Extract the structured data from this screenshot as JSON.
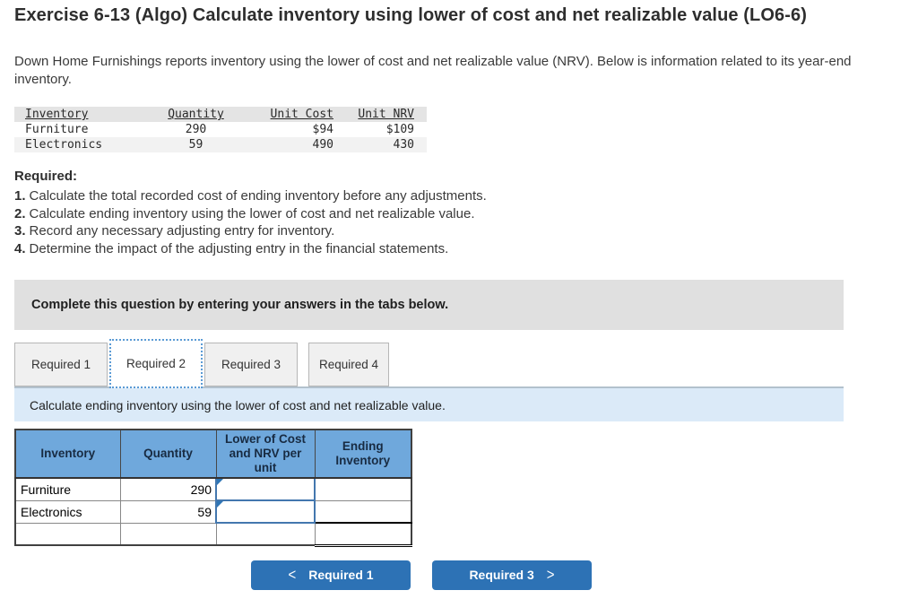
{
  "page": {
    "title": "Exercise 6-13 (Algo) Calculate inventory using lower of cost and net realizable value (LO6-6)",
    "intro": "Down Home Furnishings reports inventory using the lower of cost and net realizable value (NRV). Below is information related to its year-end inventory."
  },
  "data_table": {
    "headers": {
      "inventory": "Inventory",
      "quantity": "Quantity",
      "unit_cost": "Unit Cost",
      "unit_nrv": "Unit NRV"
    },
    "rows": [
      {
        "inventory": "Furniture",
        "quantity": "290",
        "unit_cost": "$94",
        "unit_nrv": "$109"
      },
      {
        "inventory": "Electronics",
        "quantity": "59",
        "unit_cost": "490",
        "unit_nrv": "430"
      }
    ]
  },
  "required": {
    "heading": "Required:",
    "items": [
      {
        "num": "1.",
        "text": "Calculate the total recorded cost of ending inventory before any adjustments."
      },
      {
        "num": "2.",
        "text": "Calculate ending inventory using the lower of cost and net realizable value."
      },
      {
        "num": "3.",
        "text": "Record any necessary adjusting entry for inventory."
      },
      {
        "num": "4.",
        "text": "Determine the impact of the adjusting entry in the financial statements."
      }
    ]
  },
  "complete_banner": "Complete this question by entering your answers in the tabs below.",
  "tabs": [
    {
      "label": "Required 1",
      "active": false
    },
    {
      "label": "Required 2",
      "active": true
    },
    {
      "label": "Required 3",
      "active": false
    },
    {
      "label": "Required 4",
      "active": false
    }
  ],
  "task_text": "Calculate ending inventory using the lower of cost and net realizable value.",
  "answer_table": {
    "headers": {
      "inventory": "Inventory",
      "quantity": "Quantity",
      "locnrv": "Lower of Cost and NRV per unit",
      "ending": "Ending Inventory"
    },
    "rows": [
      {
        "inventory": "Furniture",
        "quantity": "290",
        "locnrv": "",
        "ending": ""
      },
      {
        "inventory": "Electronics",
        "quantity": "59",
        "locnrv": "",
        "ending": ""
      },
      {
        "inventory": "",
        "quantity": "",
        "locnrv": "",
        "ending": ""
      }
    ]
  },
  "nav": {
    "prev_label": "Required 1",
    "next_label": "Required 3",
    "prev_icon": "<",
    "next_icon": ">"
  },
  "colors": {
    "table_header_blue": "#6fa8dc",
    "button_blue": "#2d72b5",
    "input_border_blue": "#4377ae",
    "marker_blue": "#2e75b6",
    "task_bar_blue": "#dbeaf8",
    "banner_gray": "#e0e0e0",
    "active_tab_dotted": "#5b9bd5"
  }
}
